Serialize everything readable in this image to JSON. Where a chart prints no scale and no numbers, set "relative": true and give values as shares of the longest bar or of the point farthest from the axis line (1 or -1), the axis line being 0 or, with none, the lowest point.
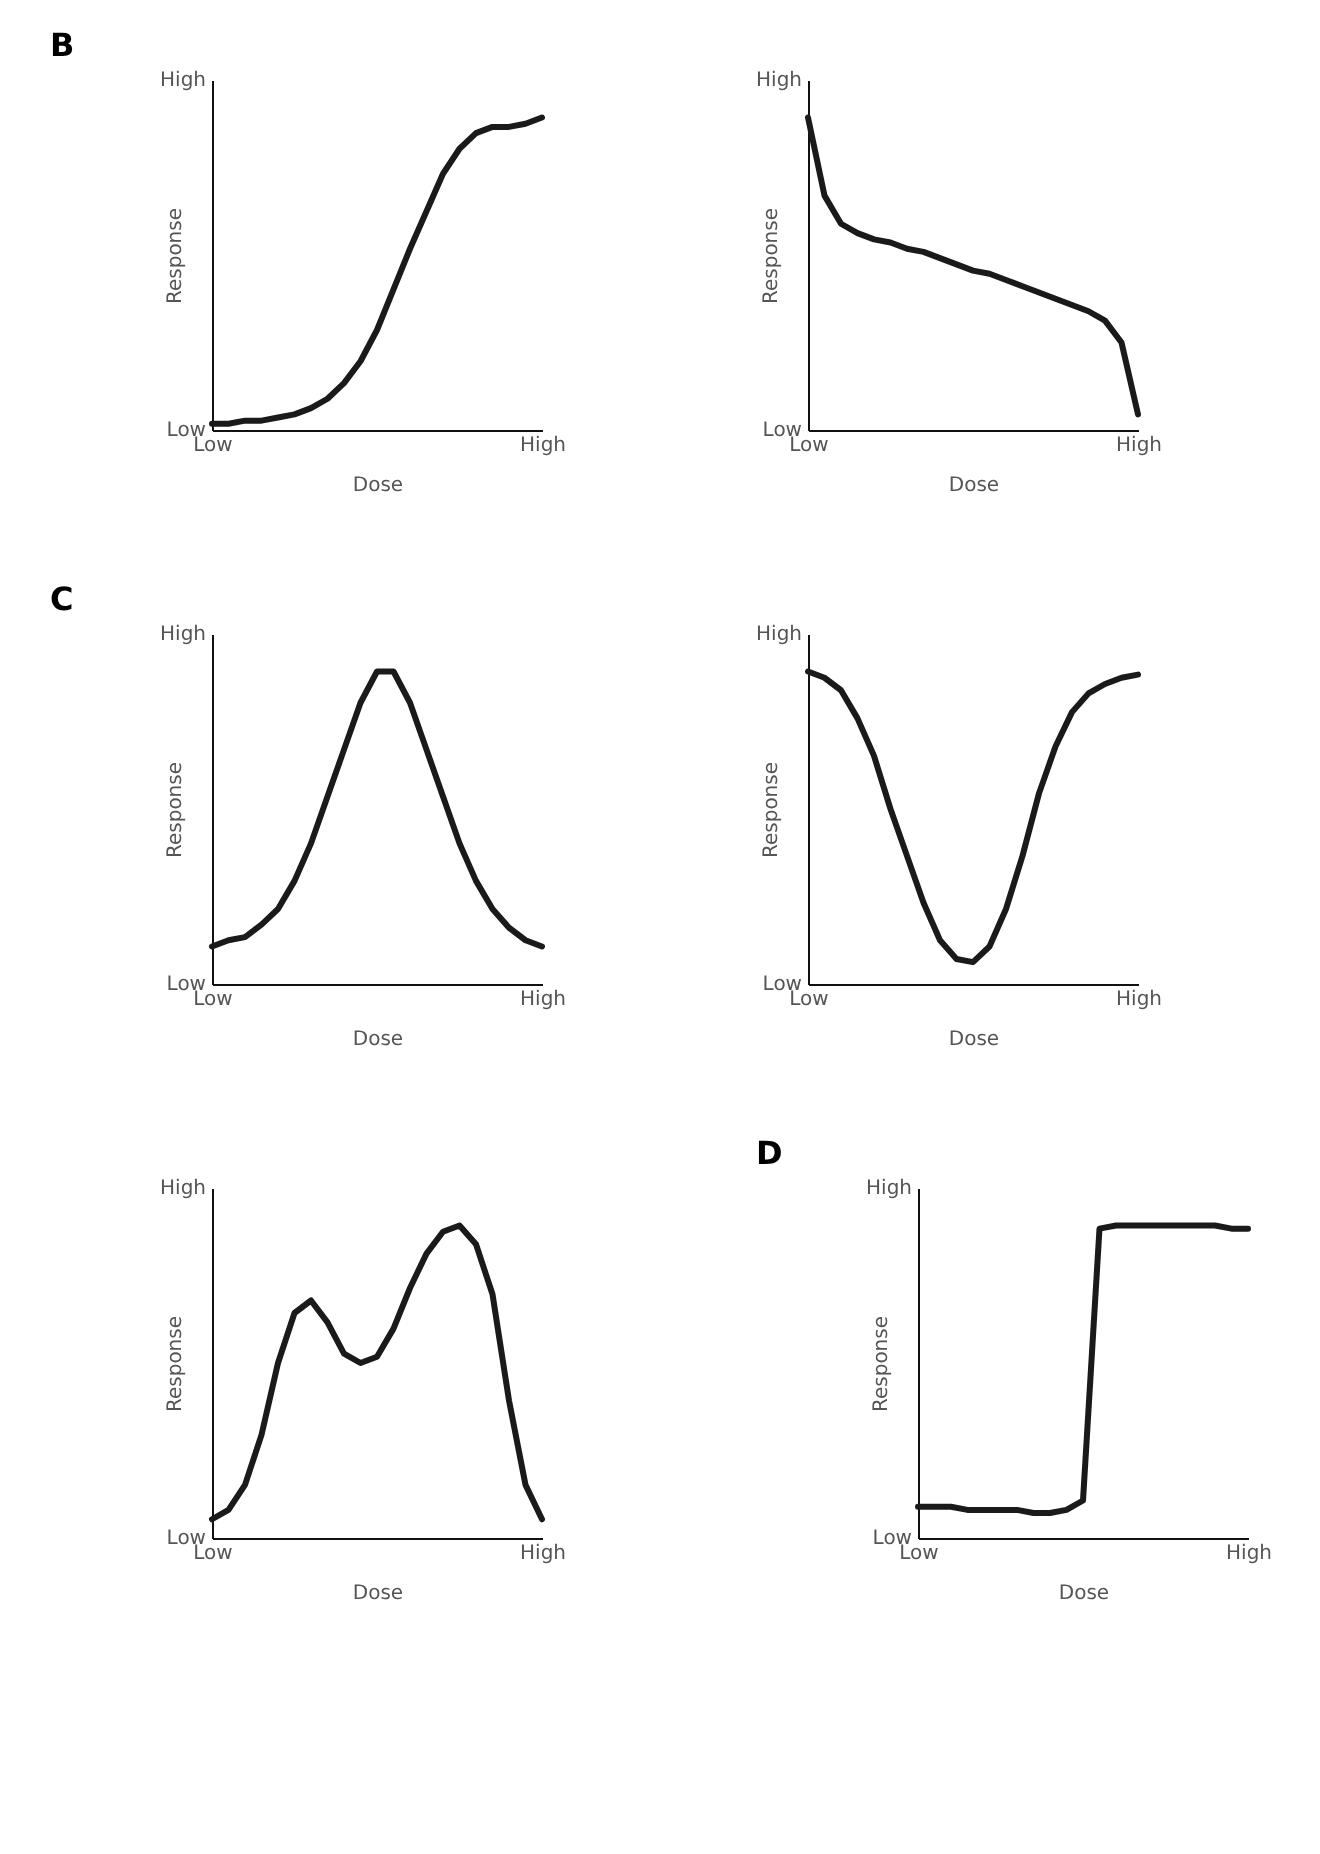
{
  "chart_data": [
    {
      "type": "line",
      "title": "B",
      "xlabel": "Dose",
      "ylabel": "Response",
      "color": "#1a1a1a",
      "grid": false,
      "relative": true,
      "annotations": [
        "High",
        "Low"
      ],
      "categories": [
        "Low",
        null,
        null,
        null,
        null,
        null,
        null,
        null,
        null,
        null,
        null,
        null,
        null,
        null,
        null,
        null,
        null,
        null,
        null,
        null,
        "High"
      ],
      "values": [
        0.02,
        0.02,
        0.03,
        0.03,
        0.04,
        0.05,
        0.07,
        0.1,
        0.15,
        0.22,
        0.32,
        0.45,
        0.58,
        0.7,
        0.82,
        0.9,
        0.95,
        0.97,
        0.97,
        0.98,
        1.0
      ]
    },
    {
      "type": "line",
      "xlabel": "Dose",
      "ylabel": "Response",
      "color": "#1a1a1a",
      "grid": false,
      "relative": true,
      "annotations": [
        "High",
        "Low"
      ],
      "categories": [
        "Low",
        null,
        null,
        null,
        null,
        null,
        null,
        null,
        null,
        null,
        null,
        null,
        null,
        null,
        null,
        null,
        null,
        null,
        null,
        null,
        "High"
      ],
      "values": [
        1.0,
        0.75,
        0.66,
        0.63,
        0.61,
        0.6,
        0.58,
        0.57,
        0.55,
        0.53,
        0.51,
        0.5,
        0.48,
        0.46,
        0.44,
        0.42,
        0.4,
        0.38,
        0.35,
        0.28,
        0.05
      ]
    },
    {
      "type": "line",
      "title": "C",
      "xlabel": "Dose",
      "ylabel": "Response",
      "color": "#1a1a1a",
      "grid": false,
      "relative": true,
      "annotations": [
        "High",
        "Low"
      ],
      "categories": [
        "Low",
        null,
        null,
        null,
        null,
        null,
        null,
        null,
        null,
        null,
        null,
        null,
        null,
        null,
        null,
        null,
        null,
        null,
        null,
        null,
        "High"
      ],
      "values": [
        0.12,
        0.14,
        0.15,
        0.19,
        0.24,
        0.33,
        0.45,
        0.6,
        0.75,
        0.9,
        1,
        1,
        0.9,
        0.75,
        0.6,
        0.45,
        0.33,
        0.24,
        0.18,
        0.14,
        0.12
      ]
    },
    {
      "type": "line",
      "xlabel": "Dose",
      "ylabel": "Response",
      "color": "#1a1a1a",
      "grid": false,
      "relative": true,
      "annotations": [
        "High",
        "Low"
      ],
      "categories": [
        "Low",
        null,
        null,
        null,
        null,
        null,
        null,
        null,
        null,
        null,
        null,
        null,
        null,
        null,
        null,
        null,
        null,
        null,
        null,
        null,
        "High"
      ],
      "values": [
        1,
        0.98,
        0.94,
        0.85,
        0.73,
        0.56,
        0.41,
        0.26,
        0.14,
        0.08,
        0.07,
        0.12,
        0.24,
        0.41,
        0.61,
        0.76,
        0.87,
        0.93,
        0.96,
        0.98,
        0.99
      ]
    },
    {
      "type": "line",
      "xlabel": "Dose",
      "ylabel": "Response",
      "color": "#1a1a1a",
      "grid": false,
      "relative": true,
      "annotations": [
        "High",
        "Low"
      ],
      "categories": [
        "Low",
        null,
        null,
        null,
        null,
        null,
        null,
        null,
        null,
        null,
        null,
        null,
        null,
        null,
        null,
        null,
        null,
        null,
        null,
        null,
        "High"
      ],
      "values": [
        0.06,
        0.09,
        0.17,
        0.33,
        0.56,
        0.72,
        0.76,
        0.69,
        0.59,
        0.56,
        0.58,
        0.67,
        0.8,
        0.91,
        0.98,
        1,
        0.94,
        0.78,
        0.44,
        0.17,
        0.06
      ]
    },
    {
      "type": "line",
      "title": "D",
      "xlabel": "Dose",
      "ylabel": "Response",
      "color": "#1a1a1a",
      "grid": false,
      "relative": true,
      "annotations": [
        "High",
        "Low"
      ],
      "categories": [
        "Low",
        null,
        null,
        null,
        null,
        null,
        null,
        null,
        null,
        null,
        null,
        null,
        null,
        null,
        null,
        null,
        null,
        null,
        null,
        null,
        "High"
      ],
      "values": [
        0.1,
        0.1,
        0.1,
        0.09,
        0.09,
        0.09,
        0.09,
        0.08,
        0.08,
        0.09,
        0.12,
        0.99,
        1,
        1,
        1,
        1,
        1,
        1,
        1,
        0.99,
        0.99
      ]
    }
  ]
}
